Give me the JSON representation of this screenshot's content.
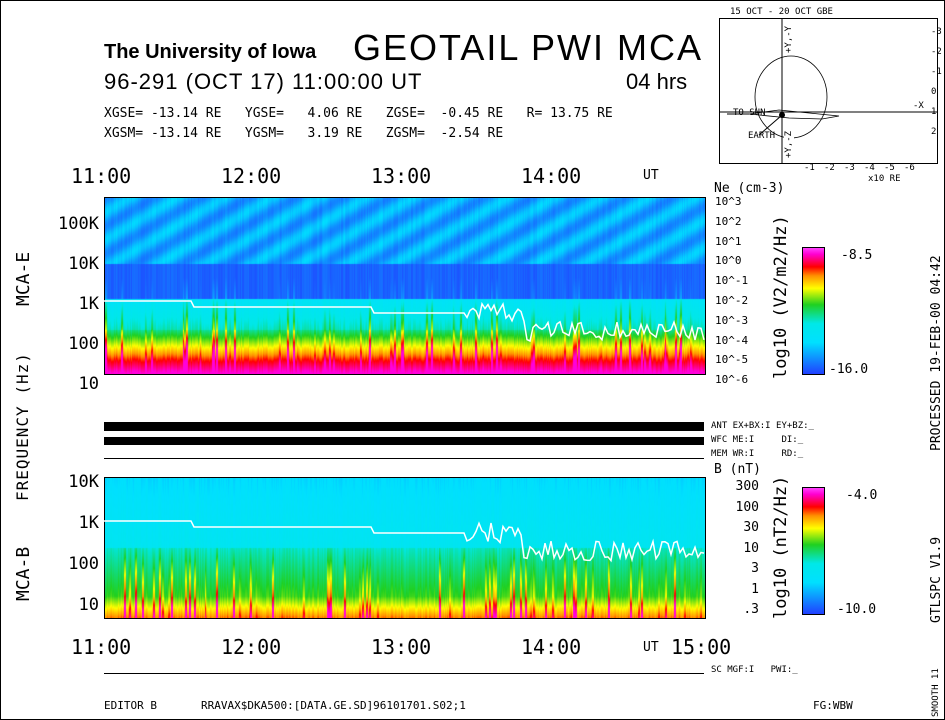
{
  "header": {
    "institution": "The University of Iowa",
    "title": "GEOTAIL PWI MCA",
    "datetime": "96-291 (OCT 17) 11:00:00 UT",
    "duration": "04 hrs",
    "gse": "XGSE= -13.14 RE   YGSE=   4.06 RE   ZGSE=  -0.45 RE   R= 13.75 RE",
    "gsm": "XGSM= -13.14 RE   YGSM=   3.19 RE   ZGSM=  -2.54 RE"
  },
  "orbit": {
    "title": "15 OCT - 20 OCT  GBE",
    "to_sun": "TO SUN",
    "earth": "EARTH",
    "xunit": "x10 RE",
    "xticks": [
      "-1",
      "-2",
      "-3",
      "-4",
      "-5",
      "-6"
    ],
    "yticks": [
      "-3",
      "-2",
      "-1",
      "0",
      "1",
      "2"
    ],
    "ylabel_top": "+Y,-Y",
    "ylabel_bot": "+Y,-Z",
    "xlabel": "-X"
  },
  "chart_data": [
    {
      "type": "heatmap",
      "title": "MCA-E",
      "ylabel": "FREQUENCY (Hz)",
      "xlabel": "UT",
      "x_ticks": [
        "11:00",
        "12:00",
        "13:00",
        "14:00"
      ],
      "x_unit": "UT",
      "y_ticks": [
        "100K",
        "10K",
        "1K",
        "100",
        "10"
      ],
      "right_axis": {
        "label": "Ne (cm-3)",
        "ticks": [
          "10^3",
          "10^2",
          "10^1",
          "10^0",
          "10^-1",
          "10^-2",
          "10^-3",
          "10^-4",
          "10^-5",
          "10^-6"
        ]
      },
      "colorbar": {
        "label": "log10 (V2/m2/Hz)",
        "max": "-8.5",
        "min": "-16.0"
      }
    },
    {
      "type": "heatmap",
      "title": "MCA-B",
      "xlabel": "UT",
      "x_ticks": [
        "11:00",
        "12:00",
        "13:00",
        "14:00",
        "15:00"
      ],
      "x_unit": "UT",
      "y_ticks": [
        "10K",
        "1K",
        "100",
        "10"
      ],
      "right_axis": {
        "label": "B (nT)",
        "ticks": [
          "300",
          "100",
          "30",
          "10",
          "3",
          "1",
          ".3"
        ]
      },
      "colorbar": {
        "label": "log10 (nT2/Hz)",
        "max": "-4.0",
        "min": "-10.0"
      }
    }
  ],
  "status": {
    "ant": "ANT EX+BX:I EY+BZ:_",
    "wfc": "WFC ME:I     DI:_",
    "mem": "MEM WR:I     RD:_",
    "sc": "SC MGF:I   PWI:_"
  },
  "footer": {
    "editor": "EDITOR B",
    "file": "RRAVAX$DKA500:[DATA.GE.SD]96101701.S02;1",
    "fg": "FG:WBW"
  },
  "side": {
    "processed": "PROCESSED 19-FEB-00  04:42",
    "version": "GTLSPC   V1.9",
    "smooth": "SMOOTH 11"
  },
  "frequency_label": "FREQUENCY (Hz)"
}
